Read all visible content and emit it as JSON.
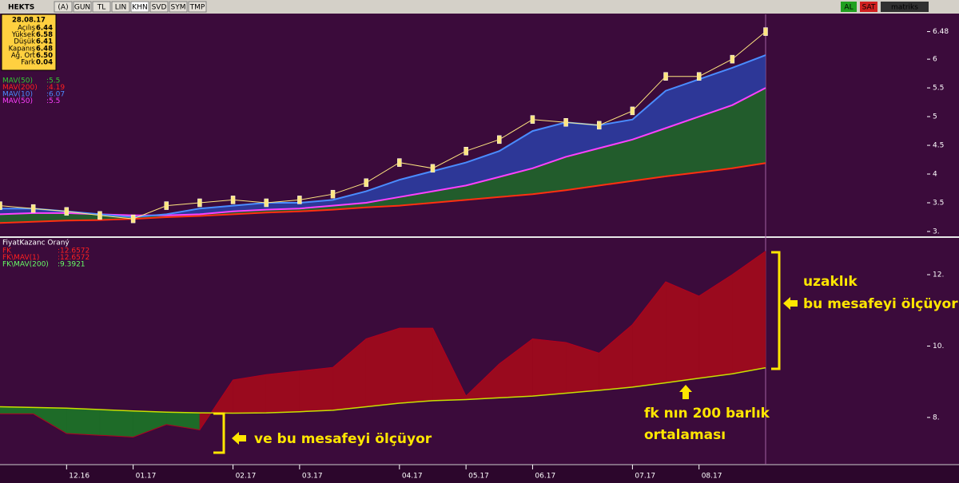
{
  "toolbar": {
    "symbol": "HEKTS",
    "buttons": [
      "(A)",
      "GUN",
      "TL",
      "LIN",
      "KHN",
      "SVD",
      "SYM",
      "TMP"
    ],
    "buy": "AL",
    "sell": "SAT",
    "brand": "matriks"
  },
  "info_box": {
    "date": "28.08.17",
    "rows": [
      [
        "Açılış",
        "6.44"
      ],
      [
        "Yüksek",
        "6.58"
      ],
      [
        "Düşük",
        "6.41"
      ],
      [
        "Kapanış",
        "6.48"
      ],
      [
        "Ağ. Ort",
        "6.50"
      ],
      [
        "Fark",
        "0.04"
      ]
    ]
  },
  "chart_data": [
    {
      "type": "line",
      "legend": [
        [
          "MAV(50)",
          ":5.5"
        ],
        [
          "MAV(200)",
          ":4.19"
        ],
        [
          "MAV(10)",
          ":6.07"
        ],
        [
          "MAV(50)",
          ":5.5"
        ]
      ],
      "legend_colors": [
        "#33cc33",
        "#ff2020",
        "#4a8cff",
        "#ff40ff"
      ],
      "ylim": [
        2.93,
        6.78
      ],
      "yticks": [
        {
          "value": 3,
          "label": "3."
        },
        3.5,
        4,
        4.5,
        5,
        5.5,
        6,
        6.48
      ],
      "series": [
        {
          "name": "Fiyat",
          "color": "#ffe680",
          "values": [
            3.45,
            3.4,
            3.35,
            3.28,
            3.22,
            3.45,
            3.5,
            3.55,
            3.5,
            3.55,
            3.65,
            3.85,
            4.2,
            4.1,
            4.4,
            4.6,
            4.95,
            4.9,
            4.85,
            5.1,
            5.7,
            5.7,
            6.0,
            6.48
          ]
        },
        {
          "name": "MAV(10)",
          "color": "#4a8cff",
          "values": [
            3.4,
            3.4,
            3.35,
            3.3,
            3.25,
            3.3,
            3.4,
            3.45,
            3.5,
            3.5,
            3.55,
            3.7,
            3.9,
            4.05,
            4.2,
            4.4,
            4.75,
            4.9,
            4.85,
            4.95,
            5.45,
            5.65,
            5.85,
            6.07
          ]
        },
        {
          "name": "MAV(50)",
          "color": "#ff40ff",
          "values": [
            3.3,
            3.32,
            3.32,
            3.3,
            3.28,
            3.28,
            3.3,
            3.35,
            3.38,
            3.4,
            3.45,
            3.5,
            3.6,
            3.7,
            3.8,
            3.95,
            4.1,
            4.3,
            4.45,
            4.6,
            4.8,
            5.0,
            5.2,
            5.5
          ]
        },
        {
          "name": "MAV(200)",
          "color": "#ff3010",
          "values": [
            3.15,
            3.17,
            3.19,
            3.2,
            3.22,
            3.25,
            3.27,
            3.3,
            3.33,
            3.35,
            3.38,
            3.42,
            3.45,
            3.5,
            3.55,
            3.6,
            3.65,
            3.72,
            3.8,
            3.88,
            3.96,
            4.03,
            4.1,
            4.19
          ]
        }
      ]
    },
    {
      "type": "area",
      "title": "FiyatKazanc Oraný",
      "legend": [
        [
          "FK",
          ":12.6572"
        ],
        [
          "FK\\MAV(1)",
          ":12.6572"
        ],
        [
          "FK\\MAV(200)",
          ":9.3921"
        ]
      ],
      "legend_colors": [
        "#ff2020",
        "#ff2020",
        "#66ff66"
      ],
      "ylim": [
        6.7,
        13.03
      ],
      "yticks": [
        {
          "value": 8,
          "label": "8."
        },
        {
          "value": 10,
          "label": "10."
        },
        {
          "value": 12,
          "label": "12."
        }
      ],
      "categories": [
        null,
        null,
        "12.16",
        null,
        "01.17",
        null,
        null,
        "02.17",
        null,
        "03.17",
        null,
        null,
        "04.17",
        null,
        "05.17",
        null,
        "06.17",
        null,
        null,
        "07.17",
        null,
        "08.17",
        null,
        null
      ],
      "above_color": "#9a0a1e",
      "below_color": "#1e6b28",
      "series": [
        {
          "name": "FK",
          "color": "#b00020",
          "values": [
            8.1,
            8.1,
            7.55,
            7.5,
            7.45,
            7.8,
            7.65,
            9.05,
            9.2,
            9.3,
            9.4,
            10.2,
            10.5,
            10.5,
            8.6,
            9.5,
            10.2,
            10.1,
            9.8,
            10.6,
            11.8,
            11.4,
            12.0,
            12.6572
          ]
        },
        {
          "name": "FK\\MAV(200)",
          "color": "#c8e000",
          "values": [
            8.3,
            8.28,
            8.26,
            8.22,
            8.18,
            8.15,
            8.13,
            8.12,
            8.13,
            8.16,
            8.2,
            8.3,
            8.4,
            8.47,
            8.5,
            8.55,
            8.6,
            8.68,
            8.76,
            8.85,
            8.97,
            9.1,
            9.22,
            9.3921
          ]
        }
      ]
    }
  ],
  "annotations": {
    "top_right": [
      "uzaklık",
      "bu mesafeyi ölçüyor"
    ],
    "bottom_left": "ve bu mesafeyi ölçüyor",
    "bottom_right": [
      "fk nın 200 barlık",
      "ortalaması"
    ]
  }
}
